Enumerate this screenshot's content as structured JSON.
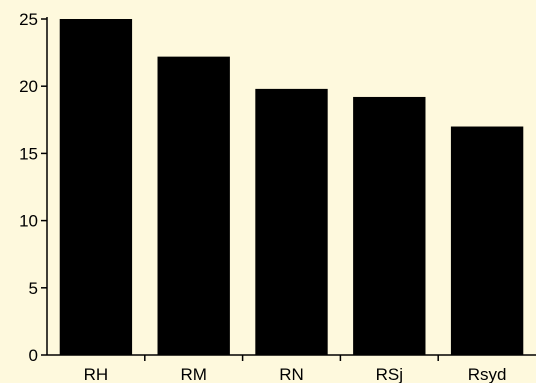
{
  "chart_data": {
    "type": "bar",
    "categories": [
      "RH",
      "RM",
      "RN",
      "RSj",
      "Rsyd"
    ],
    "values": [
      25.0,
      22.2,
      19.8,
      19.2,
      17.0
    ],
    "title": "",
    "xlabel": "",
    "ylabel": "",
    "ylim": [
      0,
      25
    ],
    "yticks": [
      0,
      5,
      10,
      15,
      20,
      25
    ],
    "grid": false,
    "legend": "none",
    "colors": {
      "background": "#fef9dd",
      "bar": "#000000",
      "axis": "#000000"
    }
  }
}
